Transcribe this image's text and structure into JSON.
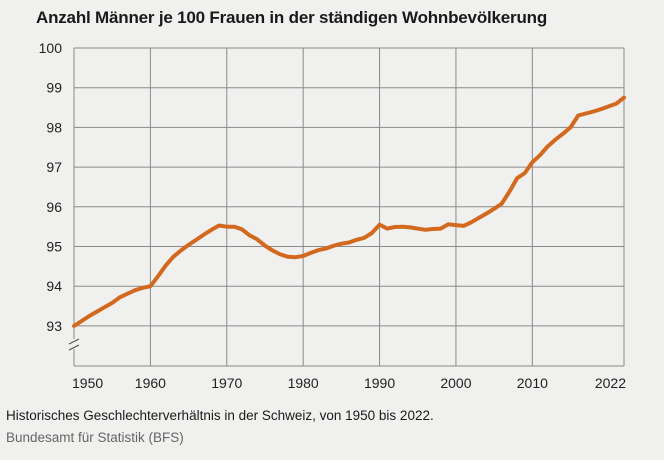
{
  "chart_data": {
    "type": "line",
    "title": "Anzahl Männer je 100 Frauen in der ständigen Wohnbevölkerung",
    "xlabel": "",
    "ylabel": "",
    "xlim": [
      1950,
      2022
    ],
    "ylim": [
      92.4,
      100
    ],
    "y_axis_break": true,
    "grid": true,
    "xticks": [
      1950,
      1960,
      1970,
      1980,
      1990,
      2000,
      2010,
      2022
    ],
    "yticks": [
      93,
      94,
      95,
      96,
      97,
      98,
      99,
      100
    ],
    "line_color": "#d2691e",
    "series": [
      {
        "x": [
          1950,
          1951,
          1952,
          1953,
          1954,
          1955,
          1956,
          1957,
          1958,
          1959,
          1960,
          1961,
          1962,
          1963,
          1964,
          1965,
          1966,
          1967,
          1968,
          1969,
          1970,
          1971,
          1972,
          1973,
          1974,
          1975,
          1976,
          1977,
          1978,
          1979,
          1980,
          1981,
          1982,
          1983,
          1984,
          1985,
          1986,
          1987,
          1988,
          1989,
          1990,
          1991,
          1992,
          1993,
          1994,
          1995,
          1996,
          1997,
          1998,
          1999,
          2000,
          2001,
          2002,
          2003,
          2004,
          2005,
          2006,
          2007,
          2008,
          2009,
          2010,
          2011,
          2012,
          2013,
          2014,
          2015,
          2016,
          2017,
          2018,
          2019,
          2020,
          2021,
          2022
        ],
        "values": [
          93.0,
          93.12,
          93.25,
          93.36,
          93.47,
          93.58,
          93.72,
          93.81,
          93.9,
          93.96,
          94.0,
          94.25,
          94.52,
          94.74,
          94.9,
          95.04,
          95.17,
          95.3,
          95.42,
          95.53,
          95.5,
          95.5,
          95.43,
          95.28,
          95.18,
          95.02,
          94.9,
          94.8,
          94.74,
          94.73,
          94.76,
          94.84,
          94.91,
          94.95,
          95.02,
          95.07,
          95.1,
          95.17,
          95.22,
          95.34,
          95.55,
          95.45,
          95.49,
          95.5,
          95.48,
          95.45,
          95.42,
          95.44,
          95.45,
          95.56,
          95.54,
          95.52,
          95.61,
          95.72,
          95.83,
          95.95,
          96.08,
          96.38,
          96.72,
          96.85,
          97.12,
          97.3,
          97.52,
          97.69,
          97.84,
          98.0,
          98.3,
          98.35,
          98.4,
          98.46,
          98.53,
          98.6,
          98.75
        ]
      }
    ]
  },
  "caption": "Historisches Geschlechterverhältnis in der Schweiz, von 1950 bis 2022.",
  "source": "Bundesamt für Statistik (BFS)"
}
